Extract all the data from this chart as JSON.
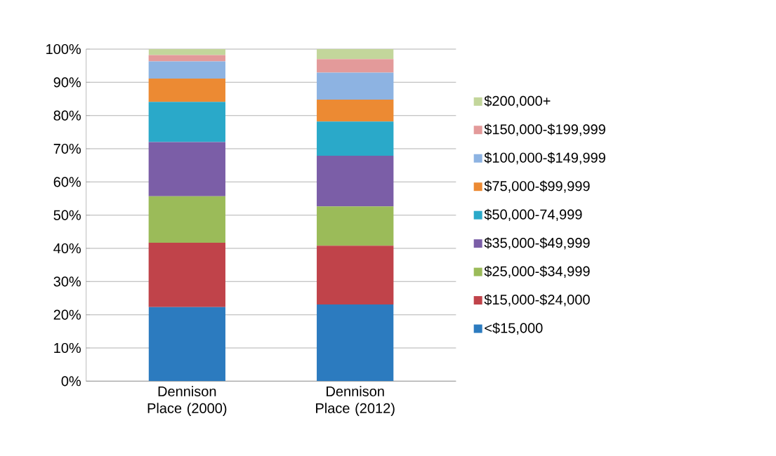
{
  "chart_data": {
    "type": "bar",
    "stacked": true,
    "categories": [
      "Dennison Place (2000)",
      "Dennison Place (2012)"
    ],
    "series": [
      {
        "name": "<$15,000",
        "color": "#2c7bbf",
        "values": [
          22.3,
          23.1
        ]
      },
      {
        "name": "$15,000-$24,000",
        "color": "#c0434a",
        "values": [
          19.4,
          17.7
        ]
      },
      {
        "name": "$25,000-$34,999",
        "color": "#9bbb59",
        "values": [
          14.0,
          11.8
        ]
      },
      {
        "name": "$35,000-$49,999",
        "color": "#7b5ea7",
        "values": [
          16.3,
          15.3
        ]
      },
      {
        "name": "$50,000-74,999",
        "color": "#2aa9c9",
        "values": [
          12.1,
          10.3
        ]
      },
      {
        "name": "$75,000-$99,999",
        "color": "#ec8a33",
        "values": [
          7.0,
          6.6
        ]
      },
      {
        "name": "$100,000-$149,999",
        "color": "#8db3e2",
        "values": [
          5.2,
          8.1
        ]
      },
      {
        "name": "$150,000-$199,999",
        "color": "#e39a9a",
        "values": [
          1.9,
          4.1
        ]
      },
      {
        "name": "$200,000+",
        "color": "#c3d69b",
        "values": [
          1.8,
          3.0
        ]
      }
    ],
    "ylim": [
      0,
      100
    ],
    "yticks": [
      {
        "value": 0,
        "label": "0%"
      },
      {
        "value": 10,
        "label": "10%"
      },
      {
        "value": 20,
        "label": "20%"
      },
      {
        "value": 30,
        "label": "30%"
      },
      {
        "value": 40,
        "label": "40%"
      },
      {
        "value": 50,
        "label": "50%"
      },
      {
        "value": 60,
        "label": "60%"
      },
      {
        "value": 70,
        "label": "70%"
      },
      {
        "value": 80,
        "label": "80%"
      },
      {
        "value": 90,
        "label": "90%"
      },
      {
        "value": 100,
        "label": "100%"
      }
    ],
    "grid": "y",
    "legend": "right"
  }
}
